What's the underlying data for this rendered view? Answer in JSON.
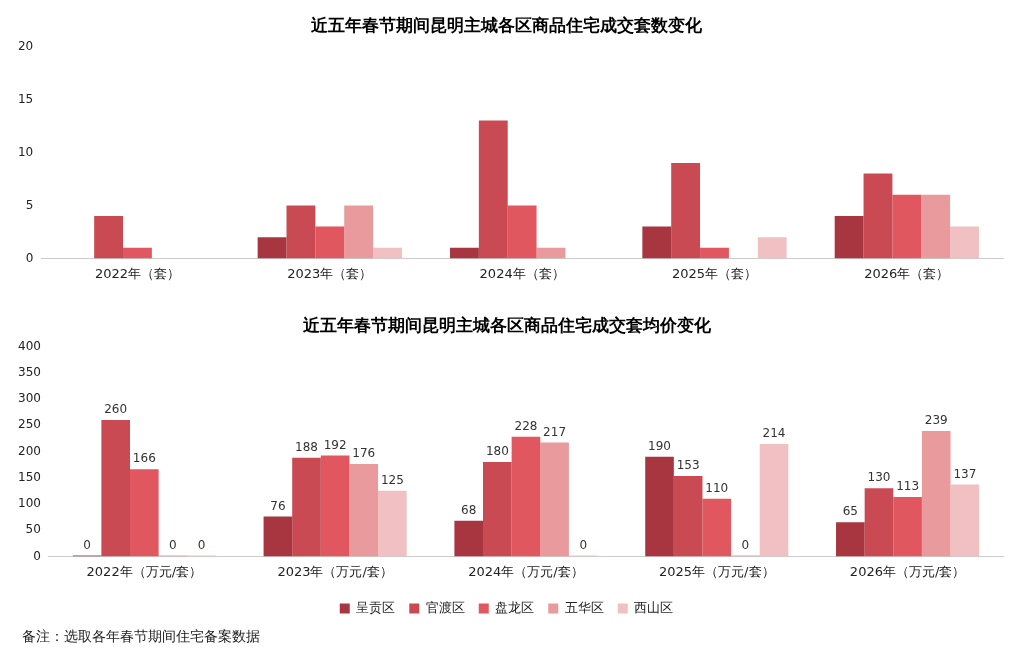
{
  "chart_data": [
    {
      "type": "bar",
      "title": "近五年春节期间昆明主城各区商品住宅成交套数变化",
      "categories": [
        "2022年（套）",
        "2023年（套）",
        "2024年（套）",
        "2025年（套）",
        "2026年（套）"
      ],
      "series": [
        {
          "color": "#a83640",
          "values": [
            0,
            2,
            1,
            3,
            4
          ]
        },
        {
          "color": "#c94a52",
          "values": [
            4,
            5,
            13,
            9,
            8
          ]
        },
        {
          "color": "#e0575f",
          "values": [
            1,
            3,
            5,
            1,
            6
          ]
        },
        {
          "color": "#e89a9c",
          "values": [
            0,
            5,
            1,
            0,
            6
          ]
        },
        {
          "color": "#f0c0c2",
          "values": [
            0,
            1,
            0,
            2,
            3
          ]
        }
      ],
      "ylim": [
        0,
        20
      ],
      "yticks": [
        0,
        5,
        10,
        15,
        20
      ],
      "grid": false,
      "legend": false
    },
    {
      "type": "bar",
      "title": "近五年春节期间昆明主城各区商品住宅成交套均价变化",
      "categories": [
        "2022年（万元/套）",
        "2023年（万元/套）",
        "2024年（万元/套）",
        "2025年（万元/套）",
        "2026年（万元/套）"
      ],
      "series": [
        {
          "name": "呈贡区",
          "color": "#a83640",
          "values": [
            0,
            76,
            68,
            190,
            65
          ]
        },
        {
          "name": "官渡区",
          "color": "#c94a52",
          "values": [
            260,
            188,
            180,
            153,
            130
          ]
        },
        {
          "name": "盘龙区",
          "color": "#e0575f",
          "values": [
            166,
            192,
            228,
            110,
            113
          ]
        },
        {
          "name": "五华区",
          "color": "#e89a9c",
          "values": [
            0,
            176,
            217,
            0,
            239
          ]
        },
        {
          "name": "西山区",
          "color": "#f0c0c2",
          "values": [
            0,
            125,
            0,
            214,
            137
          ]
        }
      ],
      "ylim": [
        0,
        400
      ],
      "yticks": [
        0,
        50,
        100,
        150,
        200,
        250,
        300,
        350,
        400
      ],
      "grid": false,
      "legend": "bottom",
      "data_labels": true,
      "annotations": [
        "备注：选取各年春节期间住宅备案数据"
      ]
    }
  ]
}
